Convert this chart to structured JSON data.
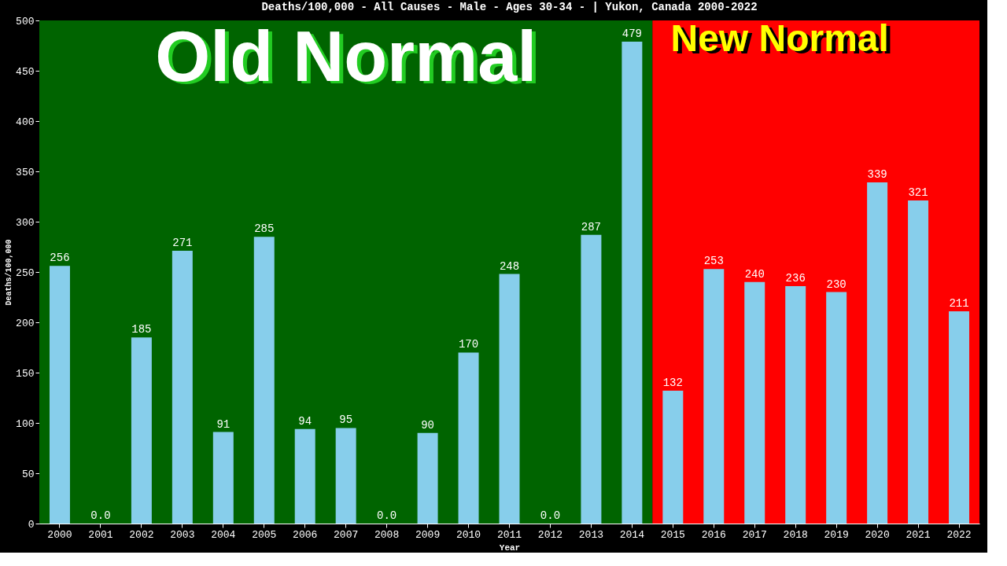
{
  "chart_data": {
    "type": "bar",
    "title": "Deaths/100,000 - All Causes - Male - Ages 30-34 -  | Yukon, Canada 2000-2022",
    "xlabel": "Year",
    "ylabel": "Deaths/100,000",
    "categories": [
      "2000",
      "2001",
      "2002",
      "2003",
      "2004",
      "2005",
      "2006",
      "2007",
      "2008",
      "2009",
      "2010",
      "2011",
      "2012",
      "2013",
      "2014",
      "2015",
      "2016",
      "2017",
      "2018",
      "2019",
      "2020",
      "2021",
      "2022"
    ],
    "series": [
      {
        "color": "#87ceeb",
        "values": [
          256,
          0,
          185,
          271,
          91,
          285,
          94,
          95,
          0,
          90,
          170,
          248,
          0,
          287,
          479,
          132,
          253,
          240,
          236,
          230,
          339,
          321,
          211
        ]
      }
    ],
    "value_labels": [
      "256",
      "0.0",
      "185",
      "271",
      "91",
      "285",
      "94",
      "95",
      "0.0",
      "90",
      "170",
      "248",
      "0.0",
      "287",
      "479",
      "132",
      "253",
      "240",
      "236",
      "230",
      "339",
      "321",
      "211"
    ],
    "ylim": [
      0,
      500
    ],
    "yticks": [
      0,
      50,
      100,
      150,
      200,
      250,
      300,
      350,
      400,
      450,
      500
    ],
    "grid": false,
    "bands": [
      {
        "axis": "x",
        "from": "2000",
        "to": "2014",
        "label": "Old Normal",
        "color": "#006400"
      },
      {
        "axis": "x",
        "from": "2015",
        "to": "2022",
        "label": "New Normal",
        "color": "#ff0000"
      }
    ]
  }
}
